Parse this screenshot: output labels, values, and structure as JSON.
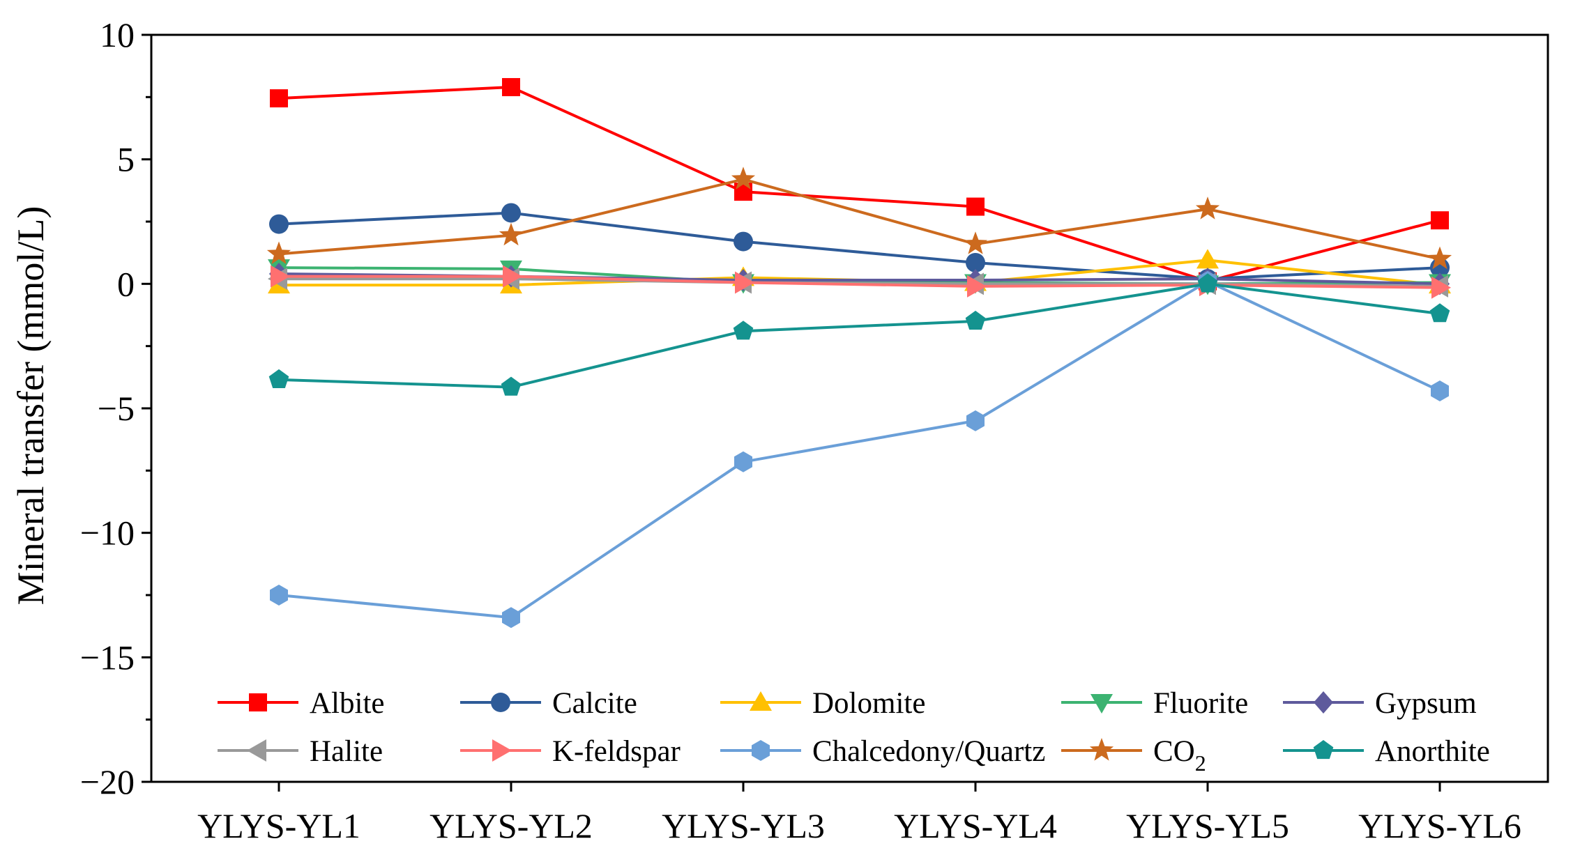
{
  "chart_data": {
    "type": "line",
    "title": "",
    "xlabel": "",
    "ylabel": "Mineral transfer (mmol/L)",
    "ylim": [
      -20,
      10
    ],
    "yticks": [
      10,
      5,
      0,
      -5,
      -10,
      -15,
      -20
    ],
    "ytick_labels": [
      "10",
      "5",
      "0",
      "−5",
      "−10",
      "−15",
      "−20"
    ],
    "categories": [
      "YLYS-YL1",
      "YLYS-YL2",
      "YLYS-YL3",
      "YLYS-YL4",
      "YLYS-YL5",
      "YLYS-YL6"
    ],
    "grid": false,
    "legend_position": "bottom",
    "series": [
      {
        "name": "Albite",
        "label_main": "Albite",
        "label_sub": "",
        "color": "#ff0000",
        "marker": "square",
        "values": [
          7.45,
          7.9,
          3.7,
          3.1,
          0.1,
          2.55
        ]
      },
      {
        "name": "Calcite",
        "label_main": "Calcite",
        "label_sub": "",
        "color": "#2e5b98",
        "marker": "circle",
        "values": [
          2.4,
          2.85,
          1.7,
          0.85,
          0.2,
          0.65
        ]
      },
      {
        "name": "Dolomite",
        "label_main": "Dolomite",
        "label_sub": "",
        "color": "#ffc000",
        "marker": "triangle-up",
        "values": [
          -0.05,
          -0.05,
          0.25,
          0.05,
          0.95,
          -0.05
        ]
      },
      {
        "name": "Fluorite",
        "label_main": "Fluorite",
        "label_sub": "",
        "color": "#3cb371",
        "marker": "triangle-down",
        "values": [
          0.65,
          0.6,
          0.05,
          0.05,
          0.0,
          0.05
        ]
      },
      {
        "name": "Gypsum",
        "label_main": "Gypsum",
        "label_sub": "",
        "color": "#5e5a9c",
        "marker": "diamond",
        "values": [
          0.4,
          0.3,
          0.15,
          0.15,
          0.2,
          0.0
        ]
      },
      {
        "name": "Halite",
        "label_main": "Halite",
        "label_sub": "",
        "color": "#999999",
        "marker": "triangle-left",
        "values": [
          0.2,
          0.2,
          0.05,
          0.0,
          0.0,
          -0.1
        ]
      },
      {
        "name": "K-feldspar",
        "label_main": "K-feldspar",
        "label_sub": "",
        "color": "#ff7070",
        "marker": "triangle-right",
        "values": [
          0.3,
          0.3,
          0.05,
          -0.1,
          -0.05,
          -0.15
        ]
      },
      {
        "name": "Chalcedony/Quartz",
        "label_main": "Chalcedony/Quartz",
        "label_sub": "",
        "color": "#6a9fd8",
        "marker": "hexagon",
        "values": [
          -12.5,
          -13.4,
          -7.15,
          -5.5,
          0.1,
          -4.3
        ]
      },
      {
        "name": "CO2",
        "label_main": "CO",
        "label_sub": "2",
        "color": "#cc6a1e",
        "marker": "star",
        "values": [
          1.2,
          1.95,
          4.2,
          1.6,
          3.0,
          1.0
        ]
      },
      {
        "name": "Anorthite",
        "label_main": "Anorthite",
        "label_sub": "",
        "color": "#14938f",
        "marker": "pentagon",
        "values": [
          -3.85,
          -4.15,
          -1.9,
          -1.5,
          0.0,
          -1.2
        ]
      }
    ]
  }
}
